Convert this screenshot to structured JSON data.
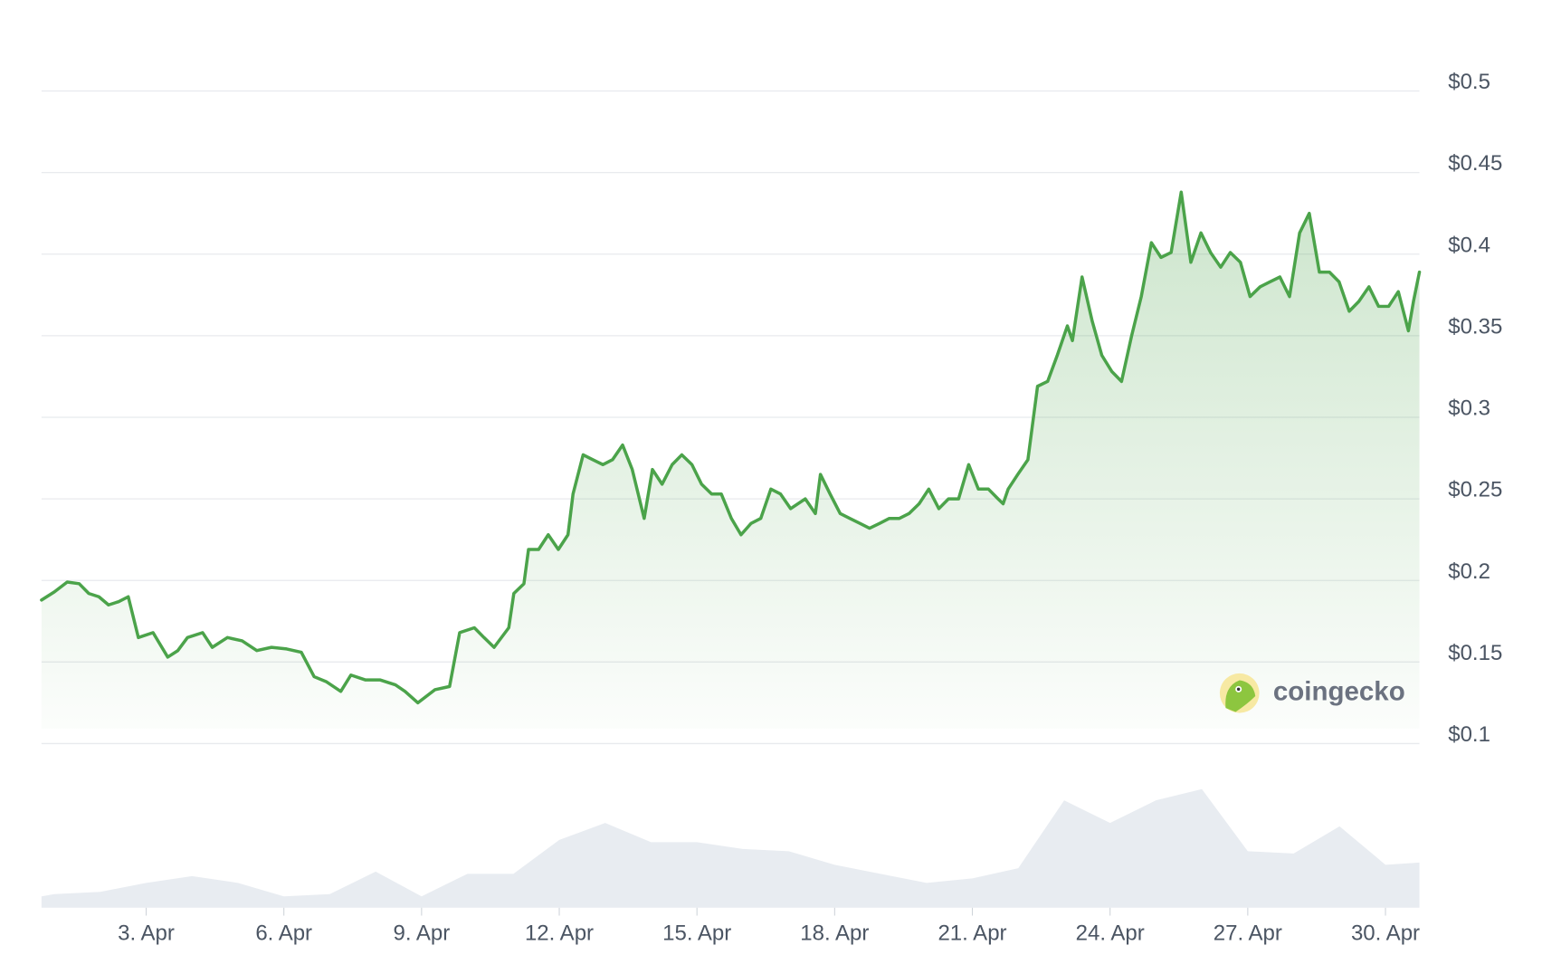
{
  "chart_data": {
    "type": "line",
    "x": [
      0.72,
      1.0,
      1.28,
      1.54,
      1.75,
      1.97,
      2.18,
      2.4,
      2.61,
      2.83,
      3.15,
      3.47,
      3.69,
      3.9,
      4.23,
      4.44,
      4.77,
      5.09,
      5.41,
      5.73,
      6.06,
      6.38,
      6.66,
      6.92,
      7.24,
      7.46,
      7.78,
      8.1,
      8.43,
      8.64,
      8.92,
      9.29,
      9.61,
      9.83,
      10.15,
      10.36,
      10.58,
      10.9,
      11.01,
      11.23,
      11.33,
      11.55,
      11.76,
      11.98,
      12.19,
      12.3,
      12.52,
      12.73,
      12.95,
      13.16,
      13.38,
      13.59,
      13.85,
      14.03,
      14.24,
      14.46,
      14.67,
      14.89,
      15.1,
      15.32,
      15.53,
      15.75,
      15.96,
      16.18,
      16.39,
      16.61,
      16.82,
      17.04,
      17.36,
      17.58,
      17.69,
      17.9,
      18.12,
      18.33,
      18.55,
      18.76,
      18.98,
      19.19,
      19.41,
      19.62,
      19.84,
      20.05,
      20.27,
      20.48,
      20.7,
      20.92,
      21.13,
      21.35,
      21.56,
      21.67,
      21.78,
      21.99,
      22.21,
      22.42,
      22.64,
      22.85,
      23.07,
      23.18,
      23.39,
      23.61,
      23.82,
      24.04,
      24.25,
      24.47,
      24.68,
      24.9,
      25.11,
      25.33,
      25.55,
      25.76,
      25.98,
      26.19,
      26.41,
      26.62,
      26.84,
      27.05,
      27.27,
      27.48,
      27.7,
      27.91,
      28.13,
      28.34,
      28.56,
      28.78,
      28.99,
      29.21,
      29.42,
      29.64,
      29.85,
      30.07,
      30.28,
      30.5,
      30.61,
      30.74
    ],
    "series": [
      {
        "color": "#4ba34a",
        "values": [
          0.188,
          0.193,
          0.199,
          0.198,
          0.192,
          0.19,
          0.185,
          0.187,
          0.19,
          0.165,
          0.168,
          0.153,
          0.157,
          0.165,
          0.168,
          0.159,
          0.165,
          0.163,
          0.157,
          0.159,
          0.158,
          0.156,
          0.141,
          0.138,
          0.132,
          0.142,
          0.139,
          0.139,
          0.136,
          0.132,
          0.125,
          0.133,
          0.135,
          0.168,
          0.171,
          0.165,
          0.159,
          0.171,
          0.192,
          0.198,
          0.219,
          0.219,
          0.228,
          0.219,
          0.228,
          0.253,
          0.277,
          0.274,
          0.271,
          0.274,
          0.283,
          0.268,
          0.238,
          0.268,
          0.259,
          0.271,
          0.277,
          0.271,
          0.259,
          0.253,
          0.253,
          0.238,
          0.228,
          0.235,
          0.238,
          0.256,
          0.253,
          0.244,
          0.25,
          0.241,
          0.265,
          0.253,
          0.241,
          0.238,
          0.235,
          0.232,
          0.235,
          0.238,
          0.238,
          0.241,
          0.247,
          0.256,
          0.244,
          0.25,
          0.25,
          0.271,
          0.256,
          0.256,
          0.25,
          0.247,
          0.256,
          0.265,
          0.274,
          0.319,
          0.322,
          0.338,
          0.356,
          0.347,
          0.386,
          0.359,
          0.338,
          0.328,
          0.322,
          0.35,
          0.374,
          0.407,
          0.398,
          0.401,
          0.438,
          0.395,
          0.413,
          0.401,
          0.392,
          0.401,
          0.395,
          0.374,
          0.38,
          0.383,
          0.386,
          0.374,
          0.413,
          0.425,
          0.389,
          0.389,
          0.383,
          0.365,
          0.371,
          0.38,
          0.368,
          0.368,
          0.377,
          0.353,
          0.371,
          0.389
        ]
      }
    ],
    "xlim": [
      0.72,
      30.74
    ],
    "xticks": [
      {
        "value": 3,
        "label": "3. Apr"
      },
      {
        "value": 6,
        "label": "6. Apr"
      },
      {
        "value": 9,
        "label": "9. Apr"
      },
      {
        "value": 12,
        "label": "12. Apr"
      },
      {
        "value": 15,
        "label": "15. Apr"
      },
      {
        "value": 18,
        "label": "18. Apr"
      },
      {
        "value": 21,
        "label": "21. Apr"
      },
      {
        "value": 24,
        "label": "24. Apr"
      },
      {
        "value": 27,
        "label": "27. Apr"
      },
      {
        "value": 30,
        "label": "30. Apr"
      }
    ],
    "ylim": [
      0.1,
      0.5
    ],
    "yticks": [
      {
        "value": 0.1,
        "label": "$0.1"
      },
      {
        "value": 0.15,
        "label": "$0.15"
      },
      {
        "value": 0.2,
        "label": "$0.2"
      },
      {
        "value": 0.25,
        "label": "$0.25"
      },
      {
        "value": 0.3,
        "label": "$0.3"
      },
      {
        "value": 0.35,
        "label": "$0.35"
      },
      {
        "value": 0.4,
        "label": "$0.4"
      },
      {
        "value": 0.45,
        "label": "$0.45"
      },
      {
        "value": 0.5,
        "label": "$0.5"
      }
    ],
    "grid": true,
    "volume": {
      "color": "#e8ecf1",
      "x": [
        0.72,
        1,
        2,
        3,
        4,
        5,
        6,
        7,
        8,
        9,
        10,
        11,
        12,
        13,
        14,
        15,
        16,
        17,
        18,
        19,
        20,
        21,
        22,
        23,
        24,
        25,
        26,
        27,
        28,
        29,
        30,
        30.74
      ],
      "values": [
        10,
        12,
        14,
        22,
        28,
        22,
        10,
        12,
        32,
        10,
        30,
        30,
        60,
        75,
        58,
        58,
        52,
        50,
        38,
        30,
        22,
        26,
        35,
        95,
        75,
        95,
        105,
        50,
        48,
        72,
        38,
        40
      ]
    },
    "watermark": "coingecko"
  }
}
